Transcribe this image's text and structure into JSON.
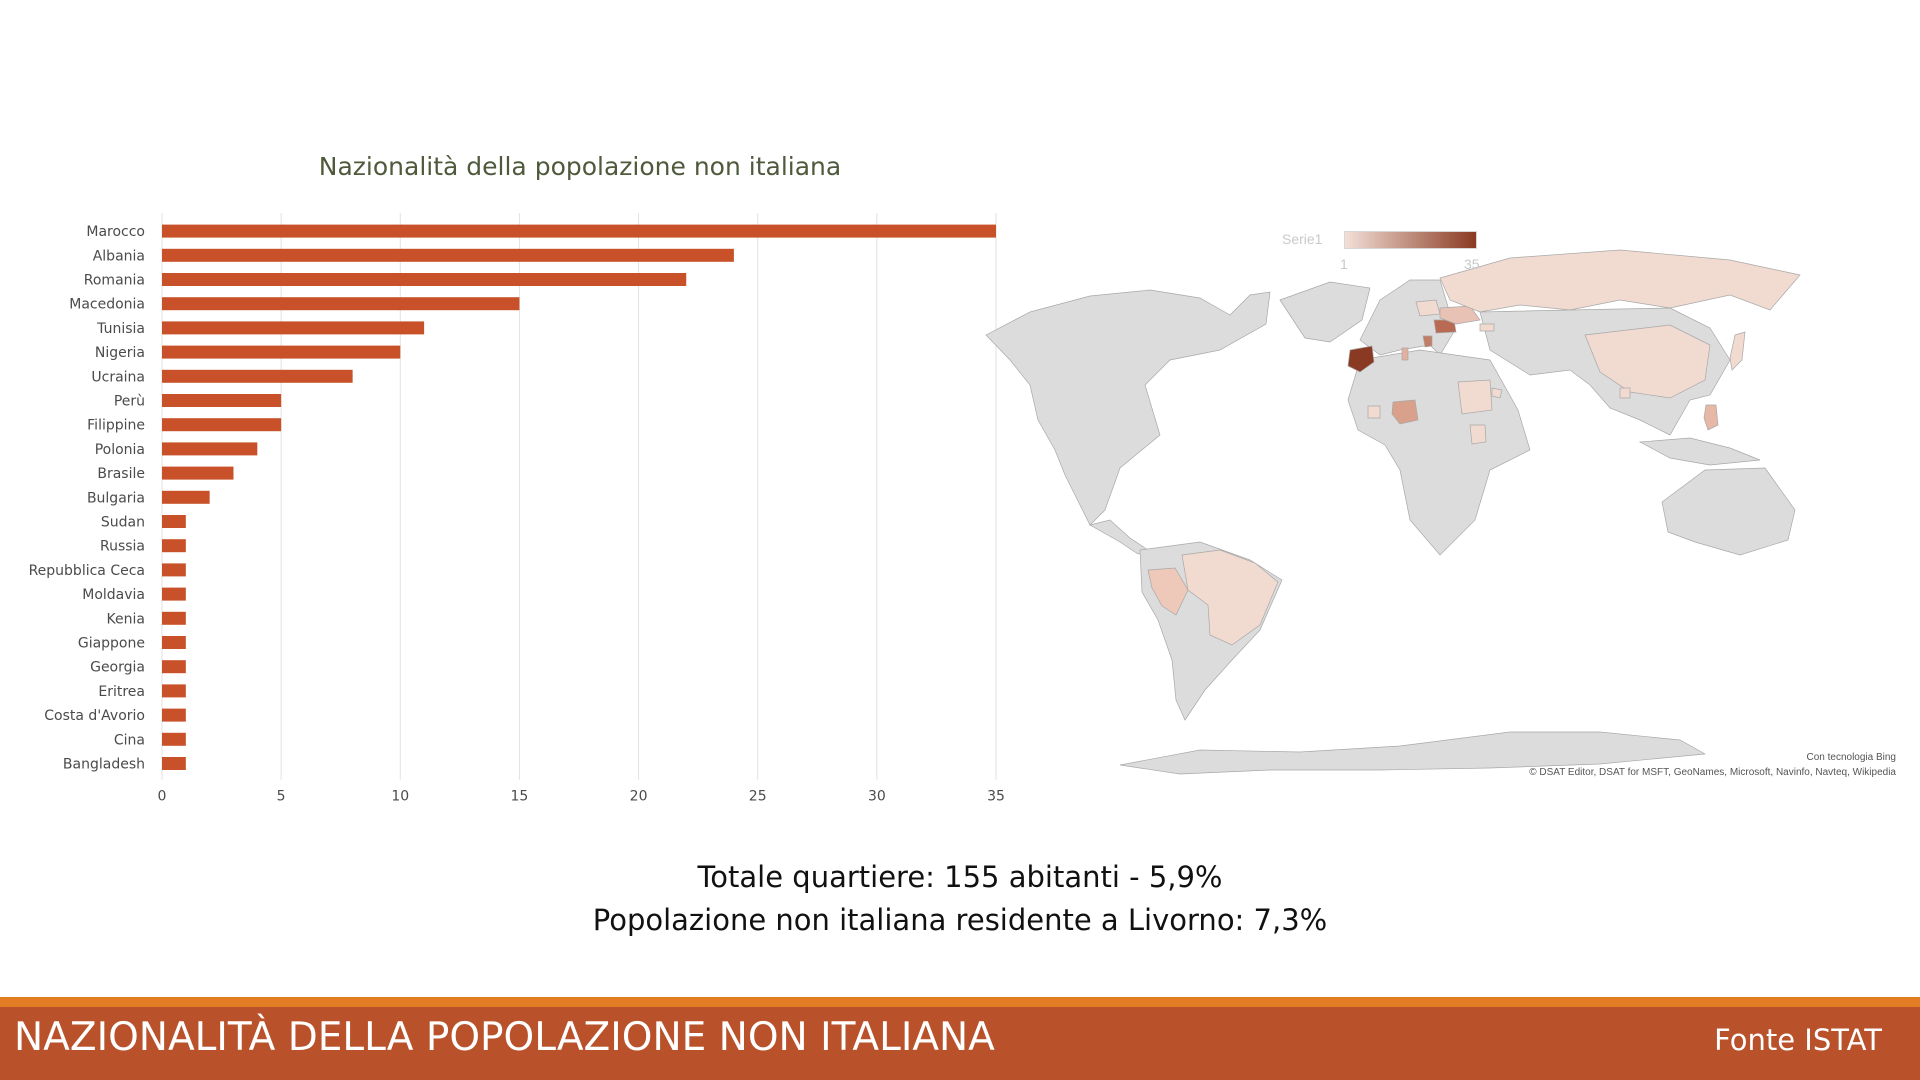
{
  "chart_data": {
    "type": "bar",
    "orientation": "horizontal",
    "title": "Nazionalità della popolazione non italiana",
    "categories": [
      "Marocco",
      "Albania",
      "Romania",
      "Macedonia",
      "Tunisia",
      "Nigeria",
      "Ucraina",
      "Perù",
      "Filippine",
      "Polonia",
      "Brasile",
      "Bulgaria",
      "Sudan",
      "Russia",
      "Repubblica Ceca",
      "Moldavia",
      "Kenia",
      "Giappone",
      "Georgia",
      "Eritrea",
      "Costa d'Avorio",
      "Cina",
      "Bangladesh"
    ],
    "values": [
      35,
      24,
      22,
      15,
      11,
      10,
      8,
      5,
      5,
      4,
      3,
      2,
      1,
      1,
      1,
      1,
      1,
      1,
      1,
      1,
      1,
      1,
      1
    ],
    "xlim": [
      0,
      35
    ],
    "xticks": [
      0,
      5,
      10,
      15,
      20,
      25,
      30,
      35
    ],
    "grid": true,
    "bar_color": "#c8512a"
  },
  "map": {
    "legend_label": "Serie1",
    "legend_min": "1",
    "legend_max": "35",
    "min_color": "#f3dfd7",
    "max_color": "#8a3a22",
    "base_color": "#dcdcdc",
    "credit": "Con tecnologia Bing",
    "copyright": "© DSAT Editor, DSAT for MSFT, GeoNames, Microsoft, Navinfo, Navteq, Wikipedia"
  },
  "summary": {
    "line1": "Totale quartiere: 155 abitanti - 5,9%",
    "line2": "Popolazione non italiana residente a Livorno: 7,3%"
  },
  "footer": {
    "title": "NAZIONALITÀ DELLA POPOLAZIONE NON ITALIANA",
    "source": "Fonte ISTAT",
    "bar_color": "#b9512a",
    "line_color": "#e37d24"
  }
}
